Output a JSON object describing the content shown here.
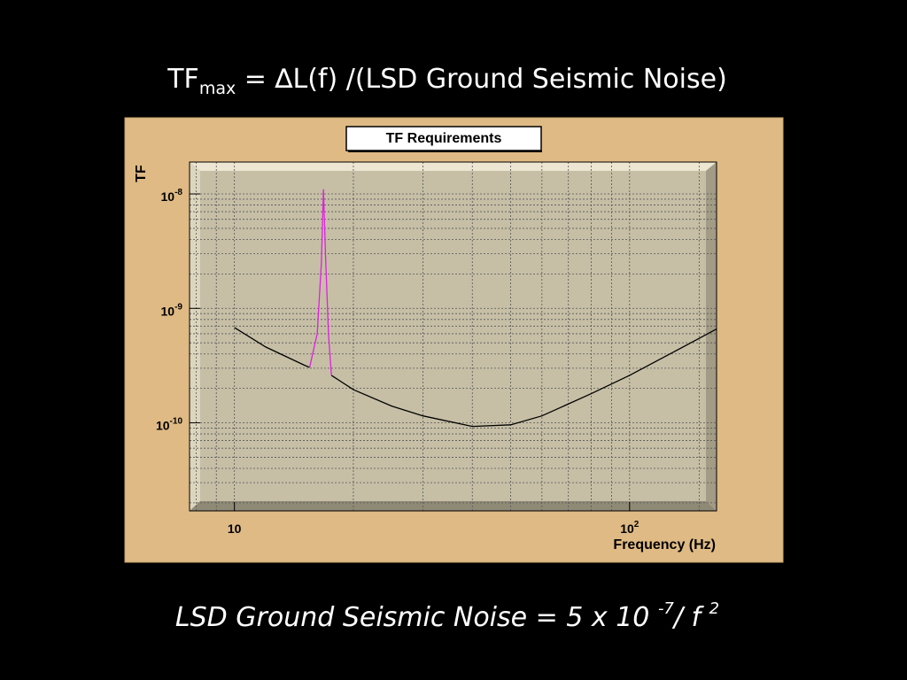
{
  "heading": {
    "base": "TF",
    "subscript": "max",
    "rest": " = ∆L(f) /(LSD Ground Seismic Noise)"
  },
  "chart_data": {
    "type": "line",
    "title": "TF Requirements",
    "ylabel": "TF",
    "xlabel": "Frequency (Hz)",
    "xscale": "log",
    "yscale": "log",
    "grid": true,
    "xlim": [
      7.7,
      166
    ],
    "ylim": [
      1.7e-11,
      1.9e-08
    ],
    "xticks": [
      10,
      {
        "value": 100,
        "label": "10",
        "exponent": "2"
      }
    ],
    "yticks": [
      {
        "value": 1e-10,
        "label": "10",
        "exponent": "-10"
      },
      {
        "value": 1e-09,
        "label": "10",
        "exponent": "-9"
      },
      {
        "value": 1e-08,
        "label": "10",
        "exponent": "-8"
      }
    ],
    "xminorticks": [
      8,
      9,
      20,
      30,
      40,
      50,
      60,
      70,
      80,
      90,
      150
    ],
    "yminorticks": [
      2e-11,
      3e-11,
      4e-11,
      5e-11,
      6e-11,
      7e-11,
      8e-11,
      9e-11,
      2e-10,
      3e-10,
      4e-10,
      5e-10,
      6e-10,
      7e-10,
      8e-10,
      9e-10,
      2e-09,
      3e-09,
      4e-09,
      5e-09,
      6e-09,
      7e-09,
      8e-09,
      9e-09
    ],
    "series": [
      {
        "color": "#000000",
        "x": [
          10,
          12,
          15,
          15.5,
          16.8,
          17.6,
          20,
          25,
          30,
          40,
          50,
          60,
          80,
          100,
          130,
          166
        ],
        "values": [
          6.8e-10,
          4.6e-10,
          3.2e-10,
          3.05e-10,
          null,
          2.6e-10,
          1.95e-10,
          1.4e-10,
          1.15e-10,
          9.3e-11,
          9.6e-11,
          1.15e-10,
          1.8e-10,
          2.6e-10,
          4.2e-10,
          6.6e-10
        ]
      },
      {
        "color": "#e020e0",
        "x": [
          15.5,
          16.2,
          16.6,
          16.8,
          17.0,
          17.3,
          17.6
        ],
        "values": [
          3.05e-10,
          6e-10,
          2.5e-09,
          1.1e-08,
          3e-09,
          6e-10,
          2.6e-10
        ]
      }
    ]
  },
  "footer": {
    "base": "LSD Ground Seismic Noise = 5 x 10 ",
    "exponent1": "-7",
    "mid": "/ f ",
    "exponent2": "2"
  }
}
